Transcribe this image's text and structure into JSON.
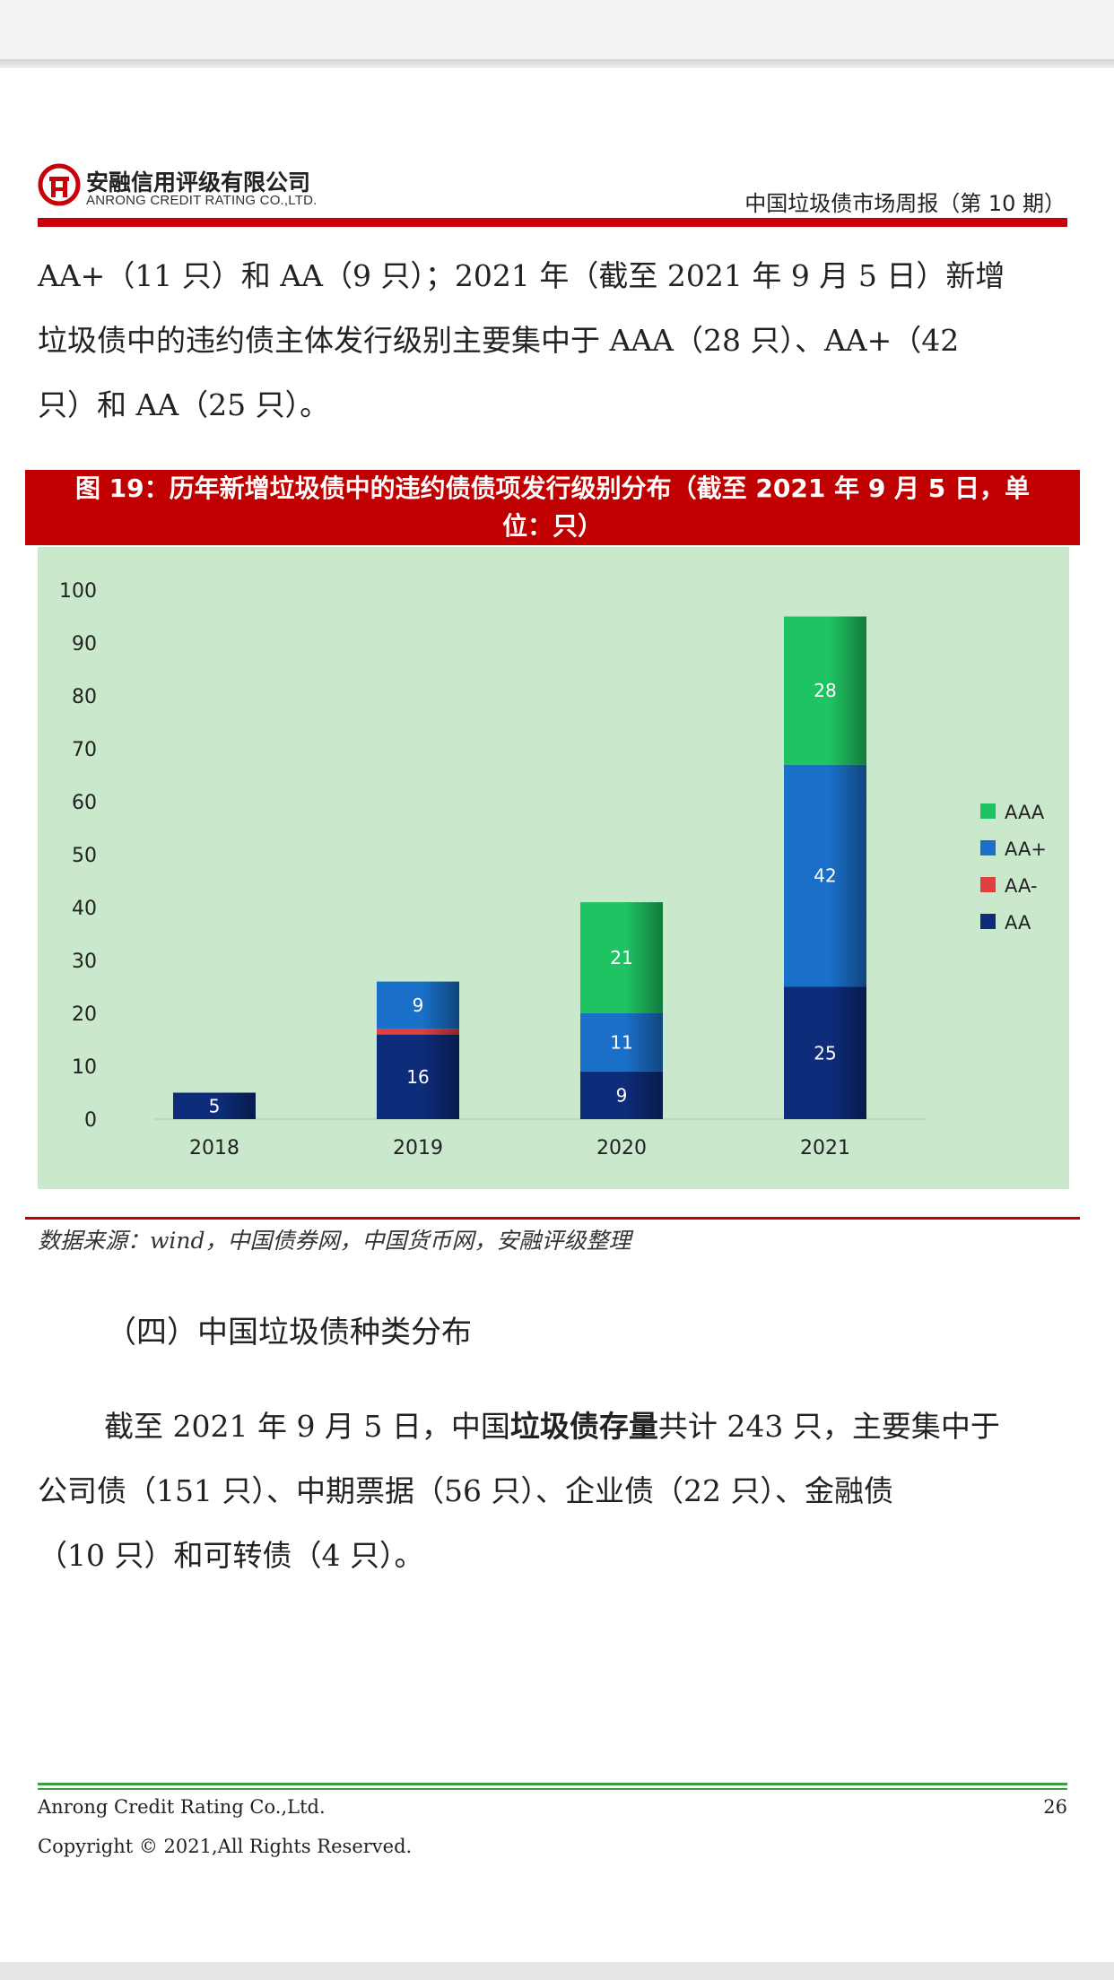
{
  "header": {
    "company_cn": "安融信用评级有限公司",
    "company_en": "ANRONG CREDIT RATING CO.,LTD.",
    "report_title": "中国垃圾债市场周报（第 10 期）"
  },
  "colors": {
    "brand_red": "#c8000a",
    "caption_red": "#c00000",
    "chart_bg": "#c9e8cc",
    "footer_green": "#3a9c3a"
  },
  "paragraph1": {
    "lines": [
      "AA+（11 只）和 AA（9 只）；2021 年（截至 2021 年 9 月 5 日）新增",
      "垃圾债中的违约债主体发行级别主要集中于 AAA（28 只）、AA+（42",
      "只）和 AA（25 只）。"
    ]
  },
  "figure": {
    "caption_line1": "图 19：历年新增垃圾债中的违约债债项发行级别分布（截至 2021 年 9 月 5 日，单",
    "caption_line2": "位：只）",
    "source": "数据来源：wind，中国债券网，中国货币网，安融评级整理"
  },
  "chart_data": {
    "type": "bar",
    "stacked": true,
    "categories": [
      "2018",
      "2019",
      "2020",
      "2021"
    ],
    "series": [
      {
        "name": "AA",
        "color": "#0d2c7a",
        "values": [
          5,
          16,
          9,
          25
        ]
      },
      {
        "name": "AA-",
        "color": "#e04040",
        "values": [
          0,
          1,
          0,
          0
        ]
      },
      {
        "name": "AA+",
        "color": "#1a6fc9",
        "values": [
          0,
          9,
          11,
          42
        ]
      },
      {
        "name": "AAA",
        "color": "#1fc462",
        "values": [
          0,
          0,
          21,
          28
        ]
      }
    ],
    "legend_order": [
      "AAA",
      "AA+",
      "AA-",
      "AA"
    ],
    "yticks": [
      0,
      10,
      20,
      30,
      40,
      50,
      60,
      70,
      80,
      90,
      100
    ],
    "ylim": [
      0,
      100
    ],
    "grid": false,
    "legend_position": "right",
    "title": "",
    "xlabel": "",
    "ylabel": ""
  },
  "section": {
    "title": "（四）中国垃圾债种类分布"
  },
  "paragraph2": {
    "line1_pre": "截至 2021 年 9 月 5 日，中国",
    "line1_bold": "垃圾债存量",
    "line1_post": "共计 243 只，主要集中于",
    "line2": "公司债（151 只）、中期票据（56 只）、企业债（22 只）、金融债",
    "line3": "（10 只）和可转债（4 只）。"
  },
  "footer": {
    "company": "Anrong Credit Rating Co.,Ltd.",
    "page": "26",
    "copyright": "Copyright © 2021,All Rights Reserved."
  }
}
